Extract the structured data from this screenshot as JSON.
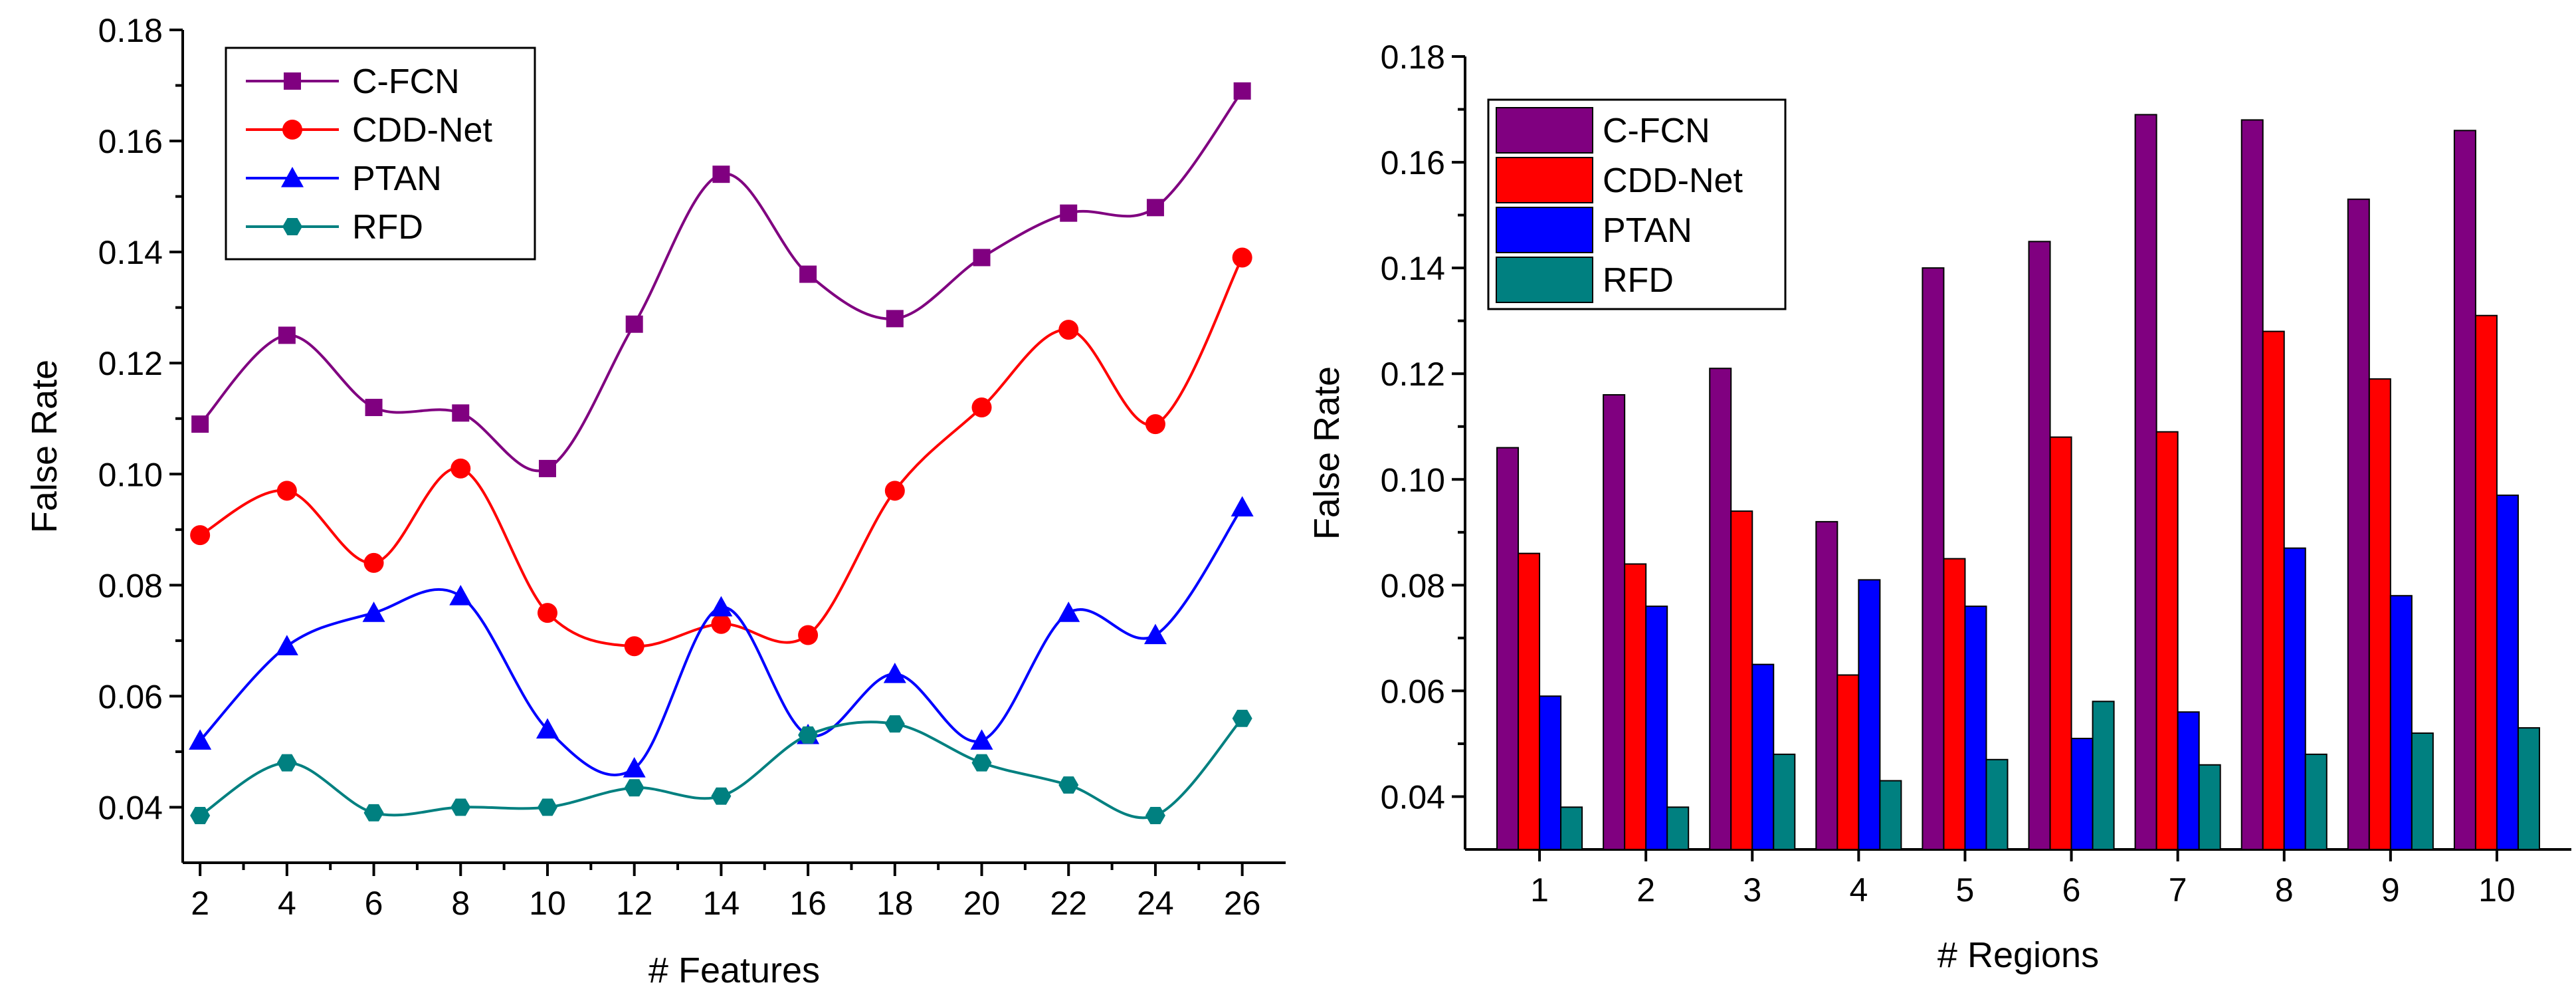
{
  "chart_data": [
    {
      "type": "line",
      "title": "",
      "xlabel": "# Features",
      "ylabel": "False Rate",
      "x": [
        2,
        4,
        6,
        8,
        10,
        12,
        14,
        16,
        18,
        20,
        22,
        24,
        26
      ],
      "xlim": [
        1.6,
        27.0
      ],
      "ylim": [
        0.03,
        0.18
      ],
      "xticks": [
        2,
        4,
        6,
        8,
        10,
        12,
        14,
        16,
        18,
        20,
        22,
        24,
        26
      ],
      "yticks": [
        0.04,
        0.06,
        0.08,
        0.1,
        0.12,
        0.14,
        0.16,
        0.18
      ],
      "ytick_labels": [
        "0.04",
        "0.06",
        "0.08",
        "0.10",
        "0.12",
        "0.14",
        "0.16",
        "0.18"
      ],
      "legend_position": "top-left",
      "smooth": true,
      "series": [
        {
          "name": "C-FCN",
          "color": "#800080",
          "marker": "square",
          "values": [
            0.109,
            0.125,
            0.112,
            0.111,
            0.101,
            0.127,
            0.154,
            0.136,
            0.128,
            0.139,
            0.147,
            0.148,
            0.169
          ]
        },
        {
          "name": "CDD-Net",
          "color": "#ff0000",
          "marker": "circle",
          "values": [
            0.089,
            0.097,
            0.084,
            0.101,
            0.075,
            0.069,
            0.073,
            0.071,
            0.097,
            0.112,
            0.126,
            0.109,
            0.139
          ]
        },
        {
          "name": "PTAN",
          "color": "#0000ff",
          "marker": "triangle",
          "values": [
            0.052,
            0.069,
            0.075,
            0.078,
            0.054,
            0.047,
            0.076,
            0.053,
            0.064,
            0.052,
            0.075,
            0.071,
            0.094
          ]
        },
        {
          "name": "RFD",
          "color": "#008080",
          "marker": "hexagon",
          "values": [
            0.0385,
            0.048,
            0.039,
            0.04,
            0.04,
            0.0435,
            0.042,
            0.053,
            0.055,
            0.048,
            0.044,
            0.0385,
            0.056
          ]
        }
      ]
    },
    {
      "type": "bar",
      "title": "",
      "xlabel": "# Regions",
      "ylabel": "False Rate",
      "categories": [
        "1",
        "2",
        "3",
        "4",
        "5",
        "6",
        "7",
        "8",
        "9",
        "10"
      ],
      "ylim": [
        0.03,
        0.18
      ],
      "yticks": [
        0.04,
        0.06,
        0.08,
        0.1,
        0.12,
        0.14,
        0.16,
        0.18
      ],
      "ytick_labels": [
        "0.04",
        "0.06",
        "0.08",
        "0.10",
        "0.12",
        "0.14",
        "0.16",
        "0.18"
      ],
      "legend_position": "top-left",
      "series": [
        {
          "name": "C-FCN",
          "color": "#800080",
          "values": [
            0.106,
            0.116,
            0.121,
            0.092,
            0.14,
            0.145,
            0.169,
            0.168,
            0.153,
            0.166
          ]
        },
        {
          "name": "CDD-Net",
          "color": "#ff0000",
          "values": [
            0.086,
            0.084,
            0.094,
            0.063,
            0.085,
            0.108,
            0.109,
            0.128,
            0.119,
            0.131
          ]
        },
        {
          "name": "PTAN",
          "color": "#0000ff",
          "values": [
            0.059,
            0.076,
            0.065,
            0.081,
            0.076,
            0.051,
            0.056,
            0.087,
            0.078,
            0.097
          ]
        },
        {
          "name": "RFD",
          "color": "#008080",
          "values": [
            0.038,
            0.038,
            0.048,
            0.043,
            0.047,
            0.058,
            0.046,
            0.048,
            0.052,
            0.053
          ]
        }
      ]
    }
  ]
}
